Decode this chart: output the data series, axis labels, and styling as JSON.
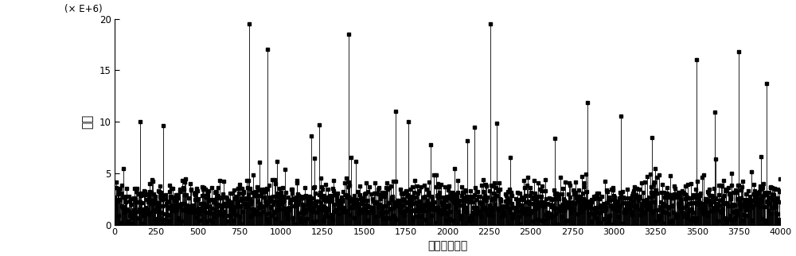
{
  "xlabel": "时间（毫秒）",
  "ylabel": "强度",
  "ylabel2": "(× E+6)",
  "xlim": [
    0,
    4000
  ],
  "ylim": [
    0,
    20
  ],
  "yticks": [
    0,
    5,
    10,
    15,
    20
  ],
  "xticks": [
    0,
    250,
    500,
    750,
    1000,
    1250,
    1500,
    1750,
    2000,
    2250,
    2500,
    2750,
    3000,
    3250,
    3500,
    3750,
    4000
  ],
  "line_color": "#000000",
  "markersize": 3,
  "linewidth": 0.6,
  "figsize": [
    10.0,
    3.22
  ],
  "dpi": 100,
  "seed": 12345,
  "n_points": 1600,
  "base_mean": 2.2,
  "base_std": 1.0,
  "spike_prob": 0.04,
  "spike_scale": 4.5,
  "background_color": "#ffffff"
}
